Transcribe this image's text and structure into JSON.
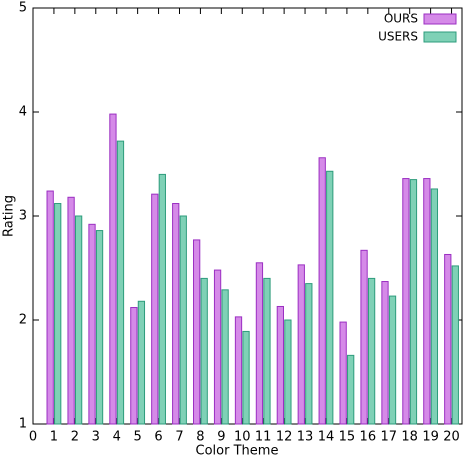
{
  "chart_data": {
    "type": "bar",
    "xlabel": "Color Theme",
    "ylabel": "Rating",
    "x": [
      1,
      2,
      3,
      4,
      5,
      6,
      7,
      8,
      9,
      10,
      11,
      12,
      13,
      14,
      15,
      16,
      17,
      18,
      19,
      20
    ],
    "series": [
      {
        "name": "OURS",
        "color": "#d58ae8",
        "edge": "#9b2fc2",
        "values": [
          3.24,
          3.18,
          2.92,
          3.98,
          2.12,
          3.21,
          3.12,
          2.77,
          2.48,
          2.03,
          2.55,
          2.13,
          2.53,
          3.56,
          1.98,
          2.67,
          2.37,
          3.36,
          3.36,
          2.63
        ]
      },
      {
        "name": "USERS",
        "color": "#7fd1b6",
        "edge": "#2e9c7c",
        "values": [
          3.12,
          3.0,
          2.86,
          3.72,
          2.18,
          3.4,
          3.0,
          2.4,
          2.29,
          1.89,
          2.4,
          2.0,
          2.35,
          3.43,
          1.66,
          2.4,
          2.23,
          3.35,
          3.26,
          2.52
        ]
      }
    ],
    "xlim": [
      0,
      20.5
    ],
    "ylim": [
      1,
      5
    ],
    "xticks": [
      0,
      1,
      2,
      3,
      4,
      5,
      6,
      7,
      8,
      9,
      10,
      11,
      12,
      13,
      14,
      15,
      16,
      17,
      18,
      19,
      20
    ],
    "yticks": [
      1,
      2,
      3,
      4,
      5
    ],
    "grid": false,
    "legend": "top-right"
  }
}
